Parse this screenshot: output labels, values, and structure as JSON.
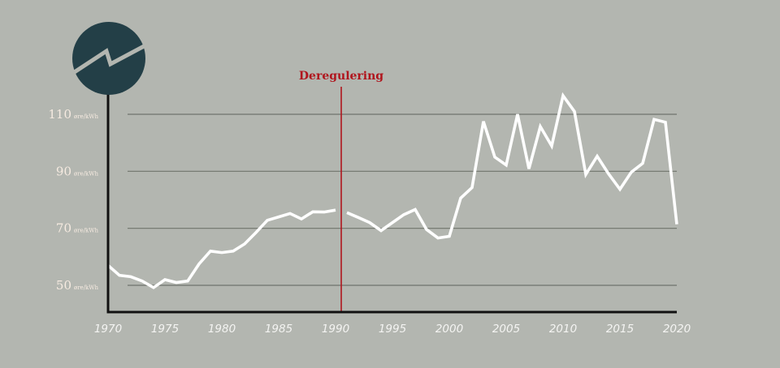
{
  "colors": {
    "background": "#b3b6b0",
    "series": "#ffffff",
    "axis": "#111111",
    "gridline": "#6f736c",
    "annotation": "#b0151d",
    "tick_label": "#f6ebe1",
    "logo_fill": "#233f47"
  },
  "logo": {
    "icon": "zigzag-arrow-icon"
  },
  "chart_data": {
    "type": "line",
    "xlim": [
      1970,
      2020
    ],
    "ylim": [
      45,
      120
    ],
    "x_ticks": [
      {
        "value": 1970,
        "label": "1970"
      },
      {
        "value": 1975,
        "label": "1975"
      },
      {
        "value": 1980,
        "label": "1980"
      },
      {
        "value": 1985,
        "label": "1985"
      },
      {
        "value": 1990,
        "label": "1990"
      },
      {
        "value": 1995,
        "label": "1995"
      },
      {
        "value": 2000,
        "label": "2000"
      },
      {
        "value": 2005,
        "label": "2005"
      },
      {
        "value": 2010,
        "label": "2010"
      },
      {
        "value": 2015,
        "label": "2015"
      },
      {
        "value": 2020,
        "label": "2020"
      }
    ],
    "y_ticks": [
      {
        "value": 50,
        "label": "50",
        "unit": "øre/kWh"
      },
      {
        "value": 70,
        "label": "70",
        "unit": "øre/kWh"
      },
      {
        "value": 90,
        "label": "90",
        "unit": "øre/kWh"
      },
      {
        "value": 110,
        "label": "110",
        "unit": "øre/kWh"
      }
    ],
    "grid": "horizontal",
    "annotation": {
      "x": 1990.5,
      "label": "Deregulering"
    },
    "series": [
      {
        "segments": [
          {
            "x": [
              1970,
              1971,
              1972,
              1973,
              1974,
              1975,
              1976,
              1977,
              1978,
              1979,
              1980,
              1981,
              1982,
              1983,
              1984,
              1985,
              1986,
              1987,
              1988,
              1989,
              1990
            ],
            "y": [
              57,
              53.5,
              53,
              51.5,
              49.2,
              52,
              51,
              51.5,
              57.5,
              62,
              61.5,
              62,
              64.5,
              68.5,
              72.8,
              74,
              75.2,
              73.3,
              75.8,
              75.7,
              76.4
            ]
          },
          {
            "x": [
              1991,
              1992,
              1993,
              1994,
              1995,
              1996,
              1997,
              1998,
              1999,
              2000,
              2001,
              2002,
              2003,
              2004,
              2005,
              2006,
              2007,
              2008,
              2009,
              2010,
              2011,
              2012,
              2013,
              2014,
              2015,
              2016,
              2017,
              2018,
              2019,
              2020
            ],
            "y": [
              75.5,
              73.8,
              72,
              69.2,
              72,
              74.8,
              76.6,
              69.6,
              66.6,
              67.2,
              80.6,
              84.3,
              107.5,
              95,
              92.2,
              110,
              90.9,
              105.7,
              98.9,
              116.5,
              111,
              88.9,
              95.3,
              89.1,
              83.7,
              89.7,
              92.8,
              108.2,
              107.2,
              71.4
            ]
          }
        ]
      }
    ]
  }
}
